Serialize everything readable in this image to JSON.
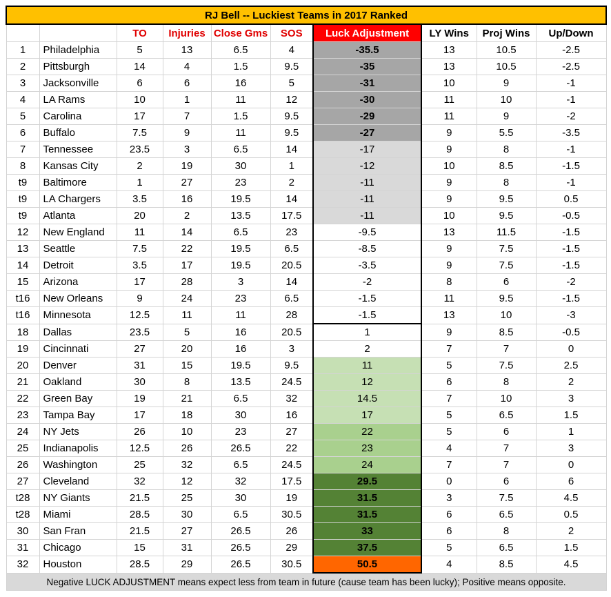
{
  "title": "RJ Bell -- Luckiest Teams in 2017 Ranked",
  "headers": [
    "",
    "",
    "TO",
    "Injuries",
    "Close Gms",
    "SOS",
    "Luck Adjustment",
    "LY Wins",
    "Proj Wins",
    "Up/Down"
  ],
  "colors": {
    "title_bg": "#ffc000",
    "header_red": "#e00000",
    "luck_header_bg": "#ff0000",
    "dark_gray": "#a6a6a6",
    "light_gray": "#d9d9d9",
    "light_green": "#c6e0b4",
    "mid_green": "#a9d08e",
    "dark_green": "#548235",
    "orange": "#ff6600"
  },
  "rows": [
    {
      "rank": "1",
      "team": "Philadelphia",
      "to": "5",
      "injuries": "13",
      "close": "6.5",
      "sos": "4",
      "luck": "-35.5",
      "ly": "13",
      "proj": "10.5",
      "updown": "-2.5"
    },
    {
      "rank": "2",
      "team": "Pittsburgh",
      "to": "14",
      "injuries": "4",
      "close": "1.5",
      "sos": "9.5",
      "luck": "-35",
      "ly": "13",
      "proj": "10.5",
      "updown": "-2.5"
    },
    {
      "rank": "3",
      "team": "Jacksonville",
      "to": "6",
      "injuries": "6",
      "close": "16",
      "sos": "5",
      "luck": "-31",
      "ly": "10",
      "proj": "9",
      "updown": "-1"
    },
    {
      "rank": "4",
      "team": "LA Rams",
      "to": "10",
      "injuries": "1",
      "close": "11",
      "sos": "12",
      "luck": "-30",
      "ly": "11",
      "proj": "10",
      "updown": "-1"
    },
    {
      "rank": "5",
      "team": "Carolina",
      "to": "17",
      "injuries": "7",
      "close": "1.5",
      "sos": "9.5",
      "luck": "-29",
      "ly": "11",
      "proj": "9",
      "updown": "-2"
    },
    {
      "rank": "6",
      "team": "Buffalo",
      "to": "7.5",
      "injuries": "9",
      "close": "11",
      "sos": "9.5",
      "luck": "-27",
      "ly": "9",
      "proj": "5.5",
      "updown": "-3.5"
    },
    {
      "rank": "7",
      "team": "Tennessee",
      "to": "23.5",
      "injuries": "3",
      "close": "6.5",
      "sos": "14",
      "luck": "-17",
      "ly": "9",
      "proj": "8",
      "updown": "-1"
    },
    {
      "rank": "8",
      "team": "Kansas City",
      "to": "2",
      "injuries": "19",
      "close": "30",
      "sos": "1",
      "luck": "-12",
      "ly": "10",
      "proj": "8.5",
      "updown": "-1.5"
    },
    {
      "rank": "t9",
      "team": "Baltimore",
      "to": "1",
      "injuries": "27",
      "close": "23",
      "sos": "2",
      "luck": "-11",
      "ly": "9",
      "proj": "8",
      "updown": "-1"
    },
    {
      "rank": "t9",
      "team": "LA Chargers",
      "to": "3.5",
      "injuries": "16",
      "close": "19.5",
      "sos": "14",
      "luck": "-11",
      "ly": "9",
      "proj": "9.5",
      "updown": "0.5"
    },
    {
      "rank": "t9",
      "team": "Atlanta",
      "to": "20",
      "injuries": "2",
      "close": "13.5",
      "sos": "17.5",
      "luck": "-11",
      "ly": "10",
      "proj": "9.5",
      "updown": "-0.5"
    },
    {
      "rank": "12",
      "team": "New England",
      "to": "11",
      "injuries": "14",
      "close": "6.5",
      "sos": "23",
      "luck": "-9.5",
      "ly": "13",
      "proj": "11.5",
      "updown": "-1.5"
    },
    {
      "rank": "13",
      "team": "Seattle",
      "to": "7.5",
      "injuries": "22",
      "close": "19.5",
      "sos": "6.5",
      "luck": "-8.5",
      "ly": "9",
      "proj": "7.5",
      "updown": "-1.5"
    },
    {
      "rank": "14",
      "team": "Detroit",
      "to": "3.5",
      "injuries": "17",
      "close": "19.5",
      "sos": "20.5",
      "luck": "-3.5",
      "ly": "9",
      "proj": "7.5",
      "updown": "-1.5"
    },
    {
      "rank": "15",
      "team": "Arizona",
      "to": "17",
      "injuries": "28",
      "close": "3",
      "sos": "14",
      "luck": "-2",
      "ly": "8",
      "proj": "6",
      "updown": "-2"
    },
    {
      "rank": "t16",
      "team": "New Orleans",
      "to": "9",
      "injuries": "24",
      "close": "23",
      "sos": "6.5",
      "luck": "-1.5",
      "ly": "11",
      "proj": "9.5",
      "updown": "-1.5"
    },
    {
      "rank": "t16",
      "team": "Minnesota",
      "to": "12.5",
      "injuries": "11",
      "close": "11",
      "sos": "28",
      "luck": "-1.5",
      "ly": "13",
      "proj": "10",
      "updown": "-3"
    },
    {
      "rank": "18",
      "team": "Dallas",
      "to": "23.5",
      "injuries": "5",
      "close": "16",
      "sos": "20.5",
      "luck": "1",
      "ly": "9",
      "proj": "8.5",
      "updown": "-0.5"
    },
    {
      "rank": "19",
      "team": "Cincinnati",
      "to": "27",
      "injuries": "20",
      "close": "16",
      "sos": "3",
      "luck": "2",
      "ly": "7",
      "proj": "7",
      "updown": "0"
    },
    {
      "rank": "20",
      "team": "Denver",
      "to": "31",
      "injuries": "15",
      "close": "19.5",
      "sos": "9.5",
      "luck": "11",
      "ly": "5",
      "proj": "7.5",
      "updown": "2.5"
    },
    {
      "rank": "21",
      "team": "Oakland",
      "to": "30",
      "injuries": "8",
      "close": "13.5",
      "sos": "24.5",
      "luck": "12",
      "ly": "6",
      "proj": "8",
      "updown": "2"
    },
    {
      "rank": "22",
      "team": "Green Bay",
      "to": "19",
      "injuries": "21",
      "close": "6.5",
      "sos": "32",
      "luck": "14.5",
      "ly": "7",
      "proj": "10",
      "updown": "3"
    },
    {
      "rank": "23",
      "team": "Tampa Bay",
      "to": "17",
      "injuries": "18",
      "close": "30",
      "sos": "16",
      "luck": "17",
      "ly": "5",
      "proj": "6.5",
      "updown": "1.5"
    },
    {
      "rank": "24",
      "team": "NY Jets",
      "to": "26",
      "injuries": "10",
      "close": "23",
      "sos": "27",
      "luck": "22",
      "ly": "5",
      "proj": "6",
      "updown": "1"
    },
    {
      "rank": "25",
      "team": "Indianapolis",
      "to": "12.5",
      "injuries": "26",
      "close": "26.5",
      "sos": "22",
      "luck": "23",
      "ly": "4",
      "proj": "7",
      "updown": "3"
    },
    {
      "rank": "26",
      "team": "Washington",
      "to": "25",
      "injuries": "32",
      "close": "6.5",
      "sos": "24.5",
      "luck": "24",
      "ly": "7",
      "proj": "7",
      "updown": "0"
    },
    {
      "rank": "27",
      "team": "Cleveland",
      "to": "32",
      "injuries": "12",
      "close": "32",
      "sos": "17.5",
      "luck": "29.5",
      "ly": "0",
      "proj": "6",
      "updown": "6"
    },
    {
      "rank": "t28",
      "team": "NY Giants",
      "to": "21.5",
      "injuries": "25",
      "close": "30",
      "sos": "19",
      "luck": "31.5",
      "ly": "3",
      "proj": "7.5",
      "updown": "4.5"
    },
    {
      "rank": "t28",
      "team": "Miami",
      "to": "28.5",
      "injuries": "30",
      "close": "6.5",
      "sos": "30.5",
      "luck": "31.5",
      "ly": "6",
      "proj": "6.5",
      "updown": "0.5"
    },
    {
      "rank": "30",
      "team": "San Fran",
      "to": "21.5",
      "injuries": "27",
      "close": "26.5",
      "sos": "26",
      "luck": "33",
      "ly": "6",
      "proj": "8",
      "updown": "2"
    },
    {
      "rank": "31",
      "team": "Chicago",
      "to": "15",
      "injuries": "31",
      "close": "26.5",
      "sos": "29",
      "luck": "37.5",
      "ly": "5",
      "proj": "6.5",
      "updown": "1.5"
    },
    {
      "rank": "32",
      "team": "Houston",
      "to": "28.5",
      "injuries": "29",
      "close": "26.5",
      "sos": "30.5",
      "luck": "50.5",
      "ly": "4",
      "proj": "8.5",
      "updown": "4.5"
    }
  ],
  "footer": "Negative LUCK ADJUSTMENT means expect less from team in future (cause team has been lucky); Positive means opposite."
}
